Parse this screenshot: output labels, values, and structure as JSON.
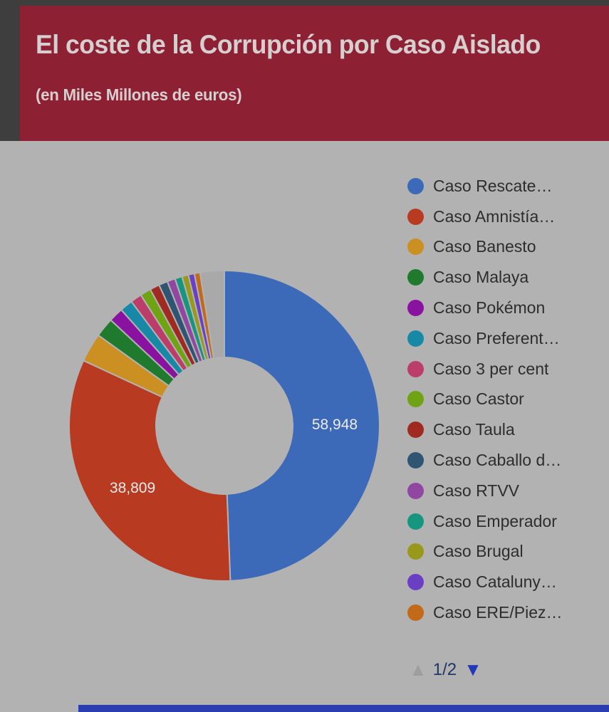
{
  "header": {
    "title": "El coste de la Corrupción por Caso Aislado",
    "subtitle": "(en Miles Millones de euros)",
    "background_color": "#8d2133",
    "text_color": "#d7ced0"
  },
  "page": {
    "background_color": "#b2b2b2",
    "backdrop_color": "#3e3e3e",
    "bottom_bar_color": "#2c3db1"
  },
  "legend_pagination": {
    "current": "1/2",
    "up_arrow_color": "#9e9e9e",
    "down_arrow_color": "#2338b8",
    "text_color": "#1f3864",
    "up_enabled": false,
    "down_enabled": true
  },
  "chart_data": {
    "type": "pie",
    "subtype": "donut",
    "title": "El coste de la Corrupción por Caso Aislado",
    "subtitle": "(en Miles Millones de euros)",
    "legend_position": "right",
    "legend_pages": "1/2",
    "start_angle_deg": 0,
    "direction": "clockwise",
    "labeled_values": {
      "Caso Rescate…": "58,948",
      "Caso Amnistía…": "38,809"
    },
    "slices": [
      {
        "name": "Caso Rescate…",
        "value": 58948,
        "display": "58,948",
        "color": "#3d69b9",
        "in_legend": true
      },
      {
        "name": "Caso Amnistía…",
        "value": 38809,
        "display": "38,809",
        "color": "#b83a20",
        "in_legend": true
      },
      {
        "name": "Caso Banesto",
        "value": 3600,
        "color": "#cc8f22",
        "in_legend": true
      },
      {
        "name": "Caso Malaya",
        "value": 2400,
        "color": "#1f7a2e",
        "in_legend": true
      },
      {
        "name": "Caso Pokémon",
        "value": 1800,
        "color": "#8a12a0",
        "in_legend": true
      },
      {
        "name": "Caso Preferent…",
        "value": 1600,
        "color": "#1789a6",
        "in_legend": true
      },
      {
        "name": "Caso 3 per cent",
        "value": 1400,
        "color": "#ba3d6a",
        "in_legend": true
      },
      {
        "name": "Caso Castor",
        "value": 1350,
        "color": "#6fa313",
        "in_legend": true
      },
      {
        "name": "Caso Taula",
        "value": 1200,
        "color": "#a02a22",
        "in_legend": true
      },
      {
        "name": "Caso Caballo d…",
        "value": 1100,
        "color": "#2f5573",
        "in_legend": true
      },
      {
        "name": "Caso RTVV",
        "value": 1000,
        "color": "#9146a1",
        "in_legend": true
      },
      {
        "name": "Caso Emperador",
        "value": 900,
        "color": "#17967f",
        "in_legend": true
      },
      {
        "name": "Caso Brugal",
        "value": 800,
        "color": "#98991c",
        "in_legend": true
      },
      {
        "name": "Caso Cataluny…",
        "value": 750,
        "color": "#6a3fc3",
        "in_legend": true
      },
      {
        "name": "Caso ERE/Piez…",
        "value": 700,
        "color": "#c2691a",
        "in_legend": true
      },
      {
        "name": "",
        "value": 3000,
        "color": "#a9a9a9",
        "in_legend": false
      }
    ]
  }
}
